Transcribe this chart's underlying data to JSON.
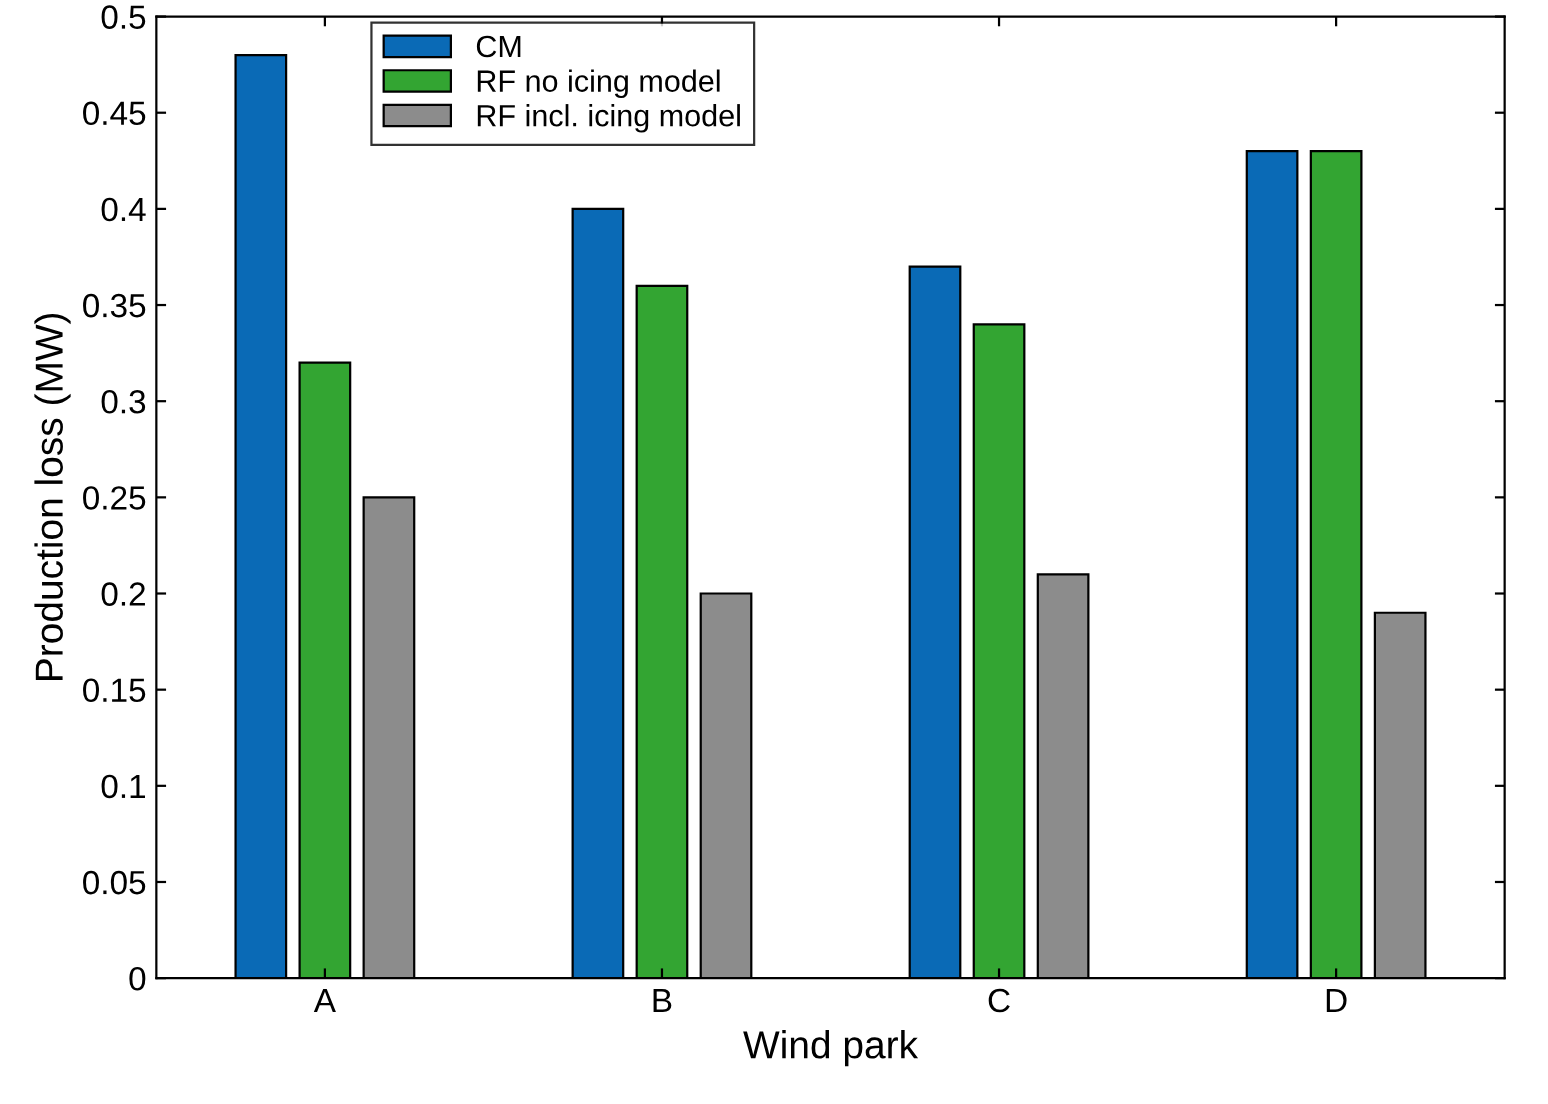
{
  "chart_data": {
    "type": "bar",
    "xlabel": "Wind park",
    "ylabel": "Production loss (MW)",
    "categories": [
      "A",
      "B",
      "C",
      "D"
    ],
    "series": [
      {
        "name": "CM",
        "color": "#0a6ab6",
        "values": [
          0.48,
          0.4,
          0.37,
          0.43
        ]
      },
      {
        "name": "RF no icing model",
        "color": "#33a532",
        "values": [
          0.32,
          0.36,
          0.34,
          0.43
        ]
      },
      {
        "name": "RF incl. icing model",
        "color": "#8c8c8c",
        "values": [
          0.25,
          0.2,
          0.21,
          0.19
        ]
      }
    ],
    "ylim": [
      0,
      0.5
    ],
    "yticks": [
      0,
      0.05,
      0.1,
      0.15,
      0.2,
      0.25,
      0.3,
      0.35,
      0.4,
      0.45,
      0.5
    ],
    "grid": false,
    "legend": "top left"
  }
}
